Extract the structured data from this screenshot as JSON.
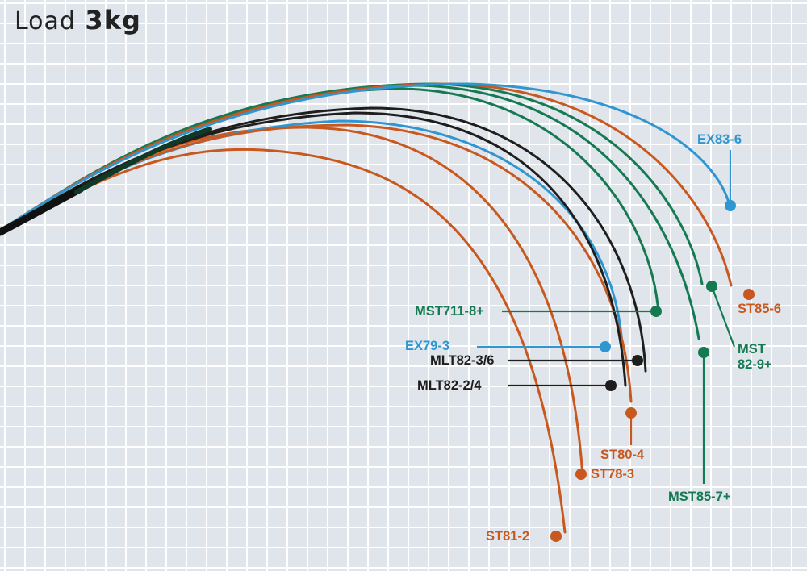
{
  "title": {
    "word": "Load",
    "value": "3kg"
  },
  "colors": {
    "st": "#c9581f",
    "ex": "#2f96d1",
    "mst": "#157a52",
    "mlt": "#1e1e1e",
    "grid_bg": "#dfe5ea",
    "grid_line": "#ffffff"
  },
  "labels": {
    "ex83_6": "EX83-6",
    "st85_6": "ST85-6",
    "mst82_9_line1": "MST",
    "mst82_9_line2": "82-9+",
    "mst711_8": "MST711-8+",
    "ex79_3": "EX79-3",
    "mlt82_3_6": "MLT82-3/6",
    "mlt82_2_4": "MLT82-2/4",
    "st80_4": "ST80-4",
    "st78_3": "ST78-3",
    "mst85_7": "MST85-7+",
    "st81_2": "ST81-2"
  }
}
